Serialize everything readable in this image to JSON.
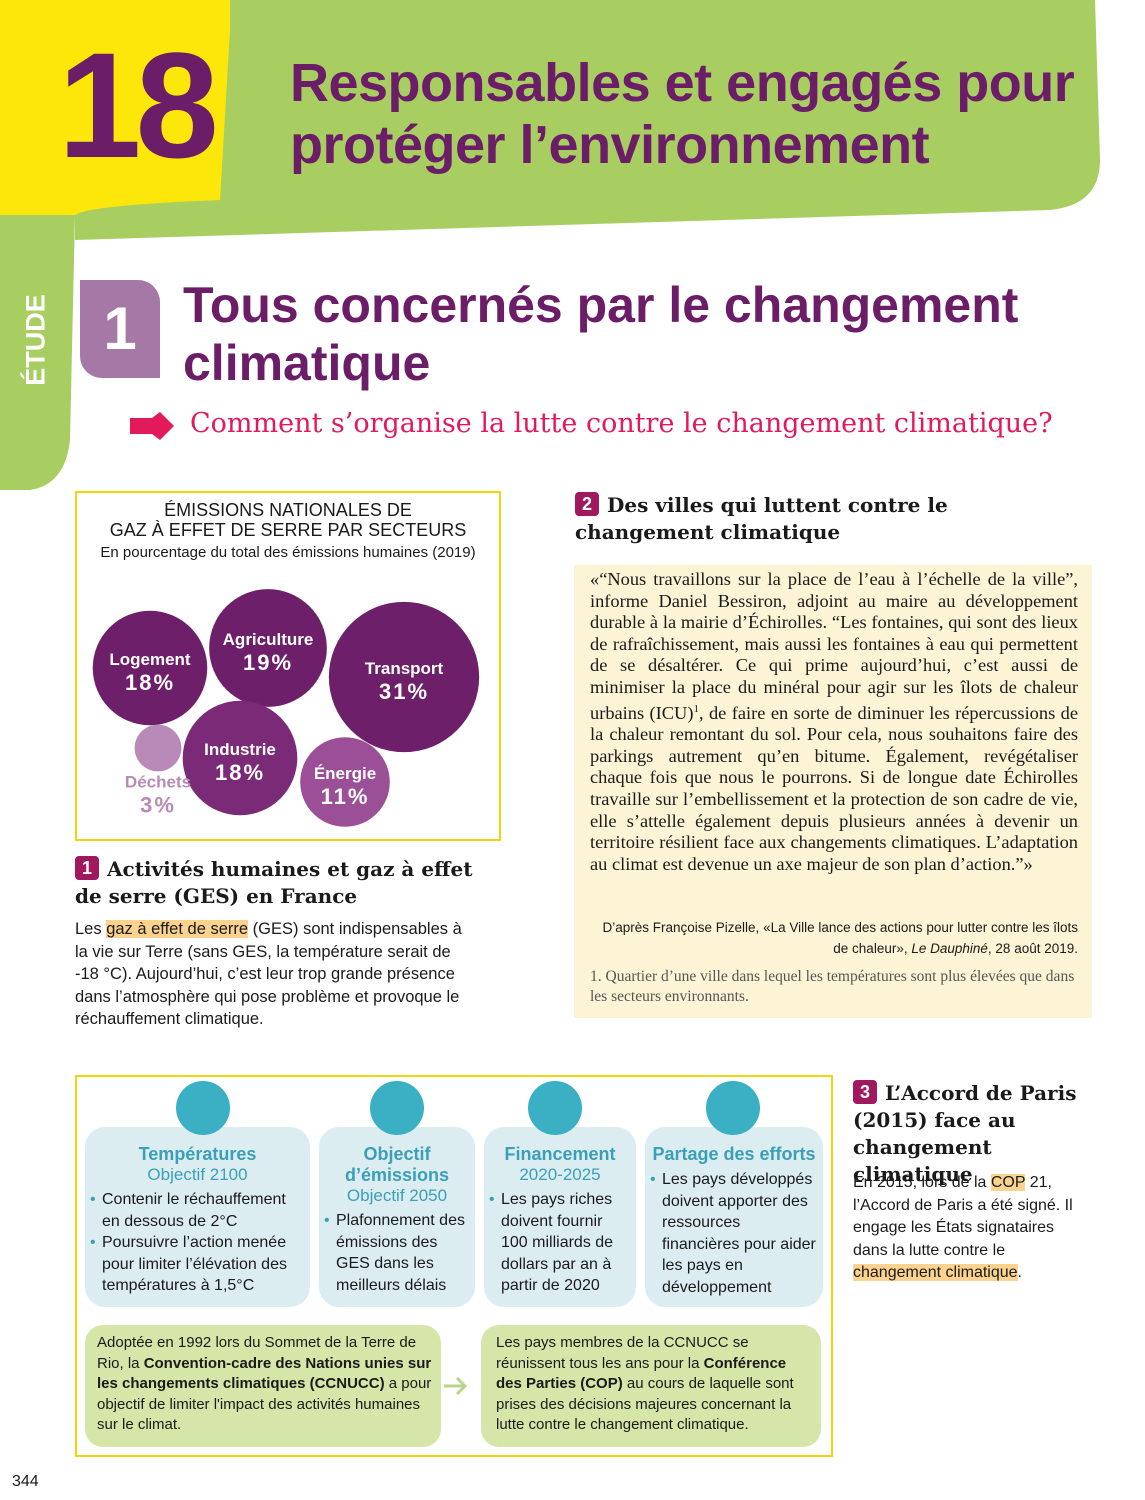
{
  "header": {
    "number": "18",
    "title": "Responsables et engagés pour protéger l’environnement"
  },
  "side_tab": "ÉTUDE",
  "study": {
    "number": "1",
    "title": "Tous concernés par le changement climatique",
    "question": "Comment s’organise la lutte contre le changement climatique?"
  },
  "doc1": {
    "chart": {
      "title_lines": [
        "ÉMISSIONS NATIONALES DE",
        "GAZ À EFFET DE SERRE PAR SECTEURS"
      ],
      "subtitle": "En pourcentage du total des émissions humaines (2019)",
      "sectors": [
        {
          "name": "Logement",
          "value": 18,
          "label": "18%",
          "color": "#6e1f6a"
        },
        {
          "name": "Agriculture",
          "value": 19,
          "label": "19%",
          "color": "#6e1f6a"
        },
        {
          "name": "Transport",
          "value": 31,
          "label": "31%",
          "color": "#6e1f6a"
        },
        {
          "name": "Industrie",
          "value": 18,
          "label": "18%",
          "color": "#7a2a76"
        },
        {
          "name": "Déchets",
          "value": 3,
          "label": "3%",
          "color": "#b98ab7"
        },
        {
          "name": "Énergie",
          "value": 11,
          "label": "11%",
          "color": "#9a4f96"
        }
      ]
    },
    "number": "1",
    "title": "Activités humaines et gaz à effet de serre (GES) en France",
    "text": [
      "Les ",
      "gaz à effet de serre",
      " (GES) sont indispensables à la vie sur Terre (sans GES, la température serait de -18 °C). Aujourd’hui, c’est leur trop grande présence dans l’atmosphère qui pose problème et provoque le réchauffement climatique."
    ]
  },
  "doc2": {
    "number": "2",
    "title": "Des villes qui luttent contre le changement climatique",
    "quote_before": "«“Nous travaillons sur la place de l’eau à l’échelle de la ville”, informe Daniel Bessiron, adjoint au maire au développement durable à la mairie d’Échirolles. “Les fontaines, qui sont des lieux de rafraîchissement, mais aussi les fontaines à eau qui permettent de se désaltérer. Ce qui prime aujourd’hui, c’est aussi de minimiser la place du minéral pour agir sur les îlots de chaleur urbains (ICU)",
    "quote_note": "1",
    "quote_after": ", de faire en sorte de diminuer les répercussions de la chaleur remontant du sol. Pour cela, nous souhaitons faire des parkings autrement qu’en bitume. Également, revégétaliser chaque fois que nous le pourrons. Si de longue date Échirolles travaille sur l’embellissement et la protection de son cadre de vie, elle s’attelle également depuis plusieurs années à devenir un territoire résilient face aux changements climatiques. L’adaptation au climat est devenue un axe majeur de son plan d’action.”»",
    "source_before": "D’après Françoise Pizelle, «La Ville lance des actions pour lutter contre les îlots de chaleur», ",
    "source_journal": "Le Dauphiné",
    "source_after": ", 28 août 2019.",
    "footnote": "1. Quartier d’une ville dans lequel les températures sont plus élevées que dans les secteurs environnants."
  },
  "doc3": {
    "cards": [
      {
        "title": "Températures",
        "subtitle": "Objectif 2100",
        "bullets": [
          "Contenir le réchauffement en dessous de 2°C",
          "Poursuivre l’action menée pour limiter l’élévation des températures à 1,5°C"
        ]
      },
      {
        "title": "Objectif d’émissions",
        "subtitle": "Objectif 2050",
        "bullets": [
          "Plafonnement des émissions des GES dans les meilleurs délais"
        ]
      },
      {
        "title": "Financement",
        "subtitle": "2020-2025",
        "bullets": [
          "Les pays riches doivent fournir 100 milliards de dollars par an à partir de 2020"
        ]
      },
      {
        "title": "Partage des efforts",
        "subtitle": null,
        "bullets": [
          "Les pays développés doivent apporter des ressources financières pour aider les pays en développement"
        ]
      }
    ],
    "boxes": [
      [
        "Adoptée en 1992 lors du Sommet de la Terre de Rio, la ",
        "Convention-cadre des Nations unies sur les changements climatiques (CCNUCC)",
        " a pour objectif de limiter l'impact des activités humaines sur le climat."
      ],
      [
        "Les pays membres de la CCNUCC se réunissent tous les ans pour la ",
        "Conférence des Parties (COP)",
        " au cours de laquelle sont prises des décisions majeures concernant la lutte contre le changement climatique."
      ]
    ],
    "number": "3",
    "title": "L’Accord de Paris (2015) face au changement climatique",
    "text": [
      "En 2015, lors de la ",
      "COP",
      " 21, l’Accord de Paris a été signé. Il engage les États signataires dans la lutte contre le ",
      "changement climatique",
      "."
    ]
  },
  "page_number": "344"
}
